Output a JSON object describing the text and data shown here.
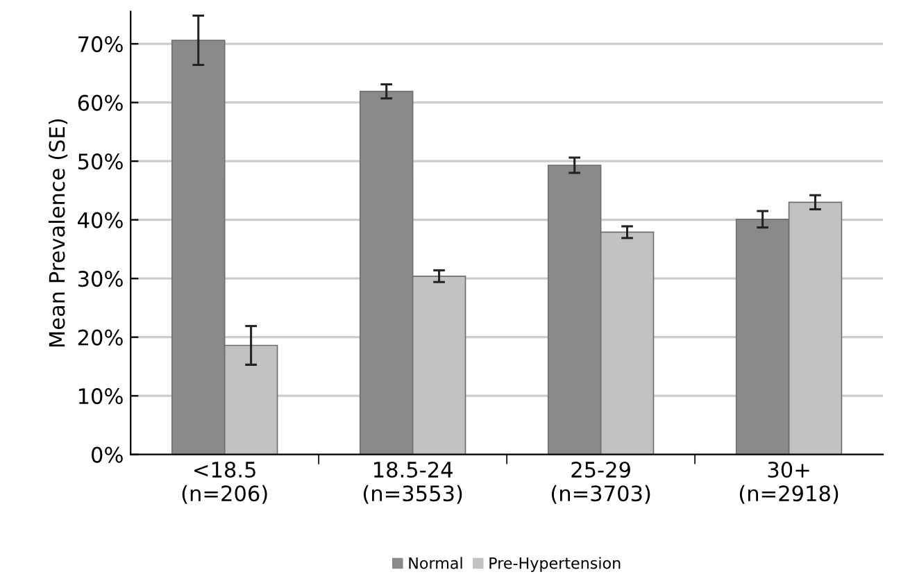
{
  "chart_data": {
    "type": "bar",
    "ylabel": "Mean Prevalence (SE)",
    "categories": [
      "<18.5\n(n=206)",
      "18.5-24\n(n=3553)",
      "25-29\n(n=3703)",
      "30+\n(n=2918)"
    ],
    "series": [
      {
        "name": "Normal",
        "color": "#8a8a8a",
        "values": [
          70.6,
          61.9,
          49.3,
          40.1
        ],
        "errors": [
          4.2,
          1.2,
          1.3,
          1.4
        ]
      },
      {
        "name": "Pre-Hypertension",
        "color": "#c2c2c2",
        "values": [
          18.6,
          30.4,
          37.9,
          43.0
        ],
        "errors": [
          3.3,
          1.0,
          1.0,
          1.2
        ]
      }
    ],
    "ylim": [
      0,
      75.5
    ],
    "yticks": [
      {
        "value": 0,
        "label": "0%"
      },
      {
        "value": 10,
        "label": "10%"
      },
      {
        "value": 20,
        "label": "20%"
      },
      {
        "value": 30,
        "label": "30%"
      },
      {
        "value": 40,
        "label": "40%"
      },
      {
        "value": 50,
        "label": "50%"
      },
      {
        "value": 60,
        "label": "60%"
      },
      {
        "value": 70,
        "label": "70%"
      }
    ],
    "grid": "y",
    "legend": "bottom"
  }
}
